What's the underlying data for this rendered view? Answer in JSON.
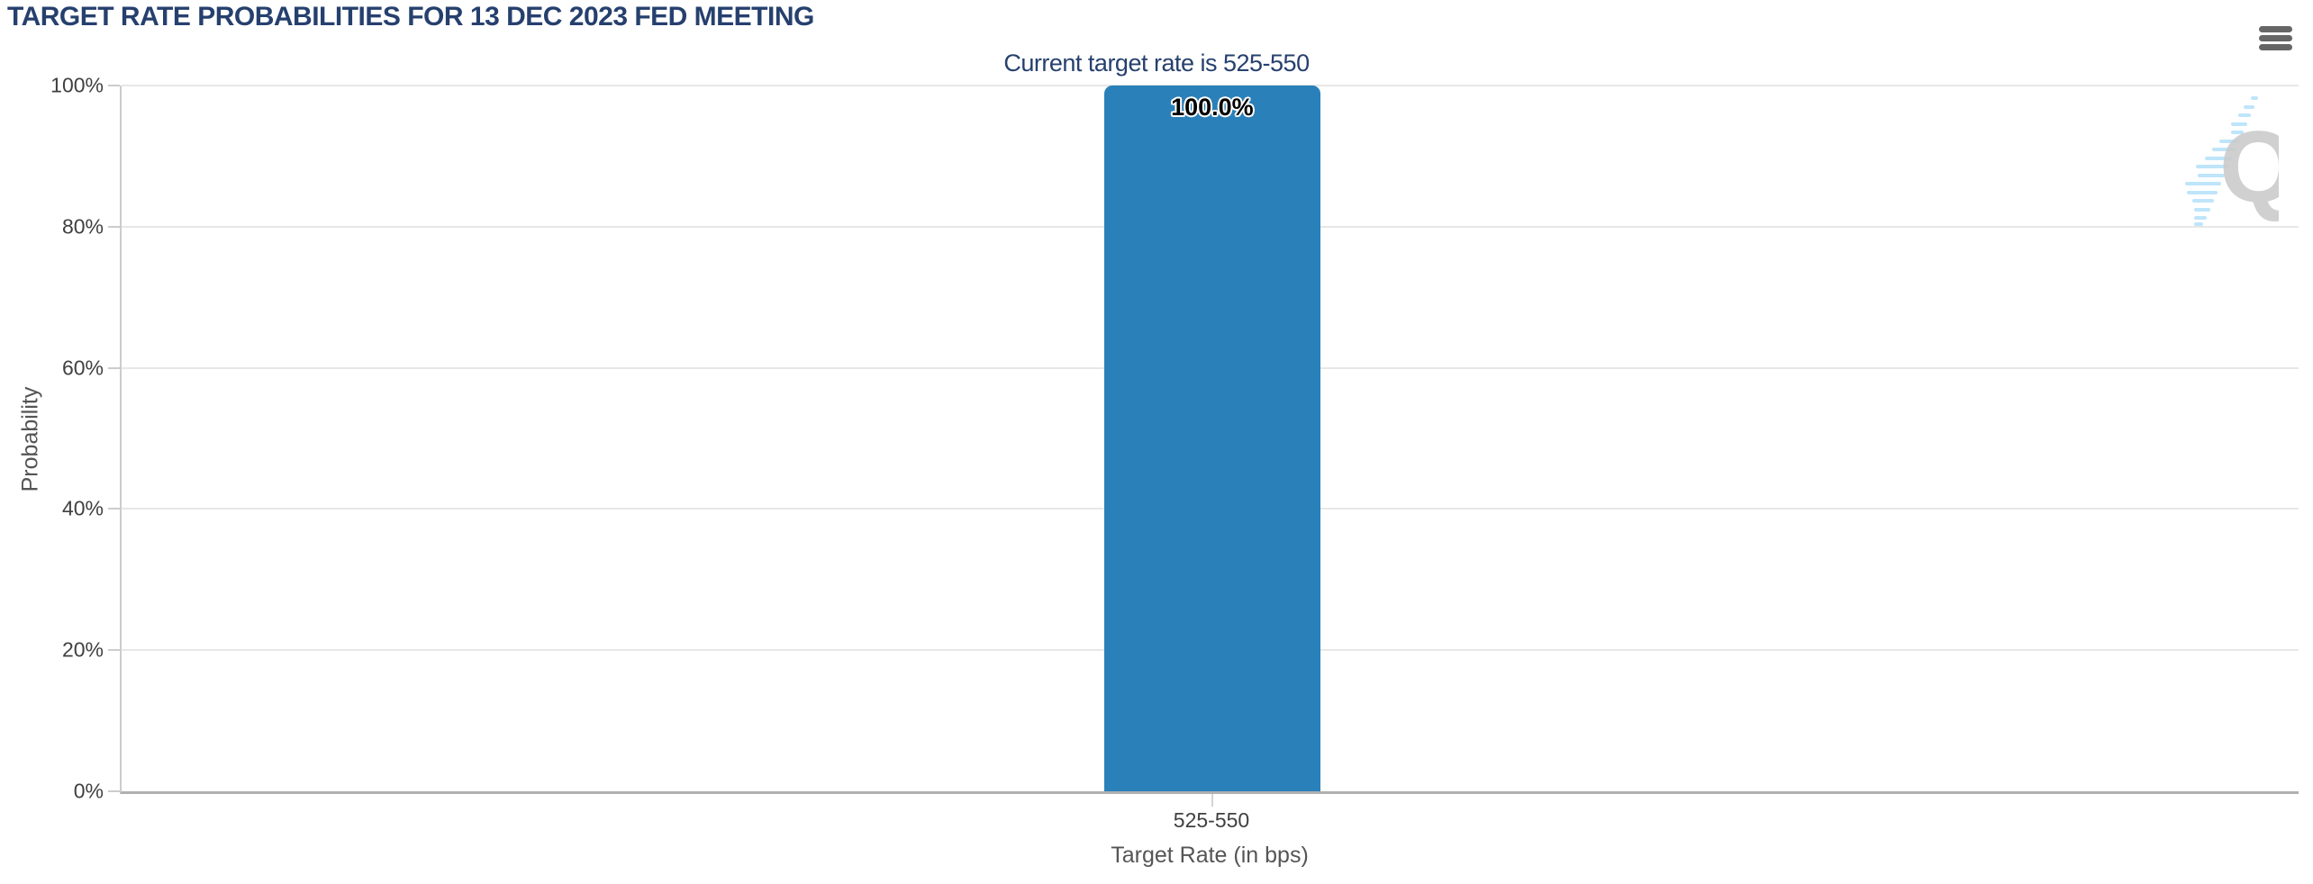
{
  "chart": {
    "menu_icon": "hamburger-icon",
    "watermark_icon": "quikstrike-q-logo"
  },
  "chart_data": {
    "type": "bar",
    "title": "TARGET RATE PROBABILITIES FOR 13 DEC 2023 FED MEETING",
    "subtitle": "Current target rate is 525-550",
    "categories": [
      "525-550"
    ],
    "series": [
      {
        "name": "Probability",
        "values": [
          100.0
        ]
      }
    ],
    "values": [
      100.0
    ],
    "value_labels": [
      "100.0%"
    ],
    "xlabel": "Target Rate (in bps)",
    "ylabel": "Probability",
    "ylim": [
      0,
      100
    ],
    "ytick_labels": [
      "100%",
      "80%",
      "60%",
      "40%",
      "20%",
      "0%"
    ],
    "grid": true,
    "legend": false,
    "colors": {
      "bar": "#2a80b9",
      "title": "#26406e",
      "gridline": "#e7e7e7",
      "axis_line": "#b0b0b0",
      "tick_label": "#404040",
      "axis_title": "#555555",
      "watermark_q": "#cbcbcb",
      "watermark_dash": "#bee5fa"
    }
  }
}
